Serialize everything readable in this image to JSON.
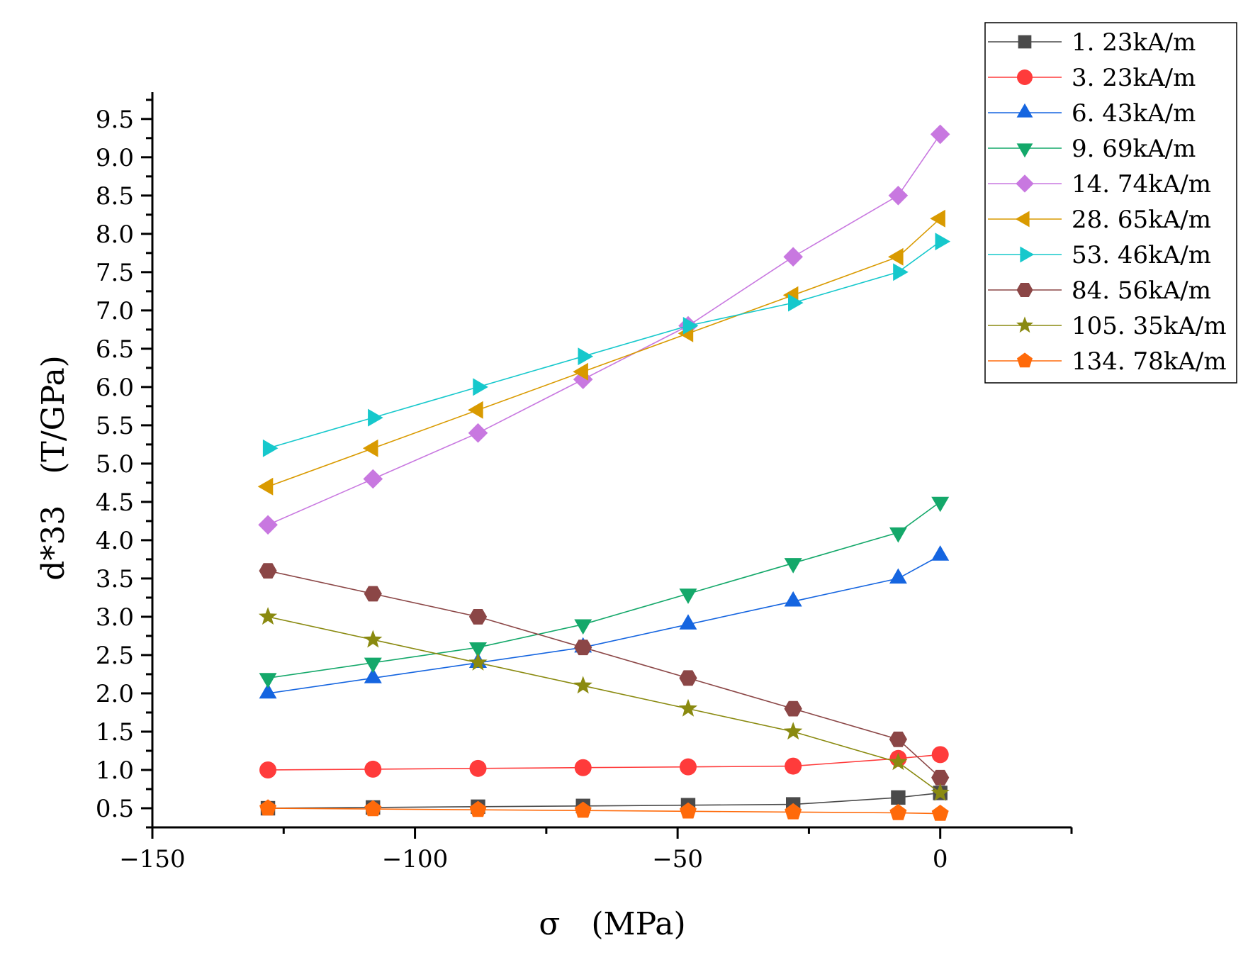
{
  "chart_data": {
    "type": "line",
    "title": "",
    "xlabel": "σ　(MPa)",
    "ylabel": "d*33　(T/GPa)",
    "xlim": [
      -150,
      25
    ],
    "ylim": [
      0.25,
      9.85
    ],
    "xticks": [
      -150,
      -100,
      -50,
      0
    ],
    "xtick_labels": [
      "−150",
      "−100",
      "−50",
      "0"
    ],
    "yticks": [
      0.5,
      1.0,
      1.5,
      2.0,
      2.5,
      3.0,
      3.5,
      4.0,
      4.5,
      5.0,
      5.5,
      6.0,
      6.5,
      7.0,
      7.5,
      8.0,
      8.5,
      9.0,
      9.5
    ],
    "ytick_labels": [
      "0.5",
      "1.0",
      "1.5",
      "2.0",
      "2.5",
      "3.0",
      "3.5",
      "4.0",
      "4.5",
      "5.0",
      "5.5",
      "6.0",
      "6.5",
      "7.0",
      "7.5",
      "8.0",
      "8.5",
      "9.0",
      "9.5"
    ],
    "grid": false,
    "legend_position": "top-right",
    "x": [
      -128,
      -108,
      -88,
      -68,
      -48,
      -28,
      -8,
      0
    ],
    "series": [
      {
        "name": "1. 23kA/m",
        "marker": "square",
        "color": "#4a4a4a",
        "values": [
          0.5,
          0.51,
          0.52,
          0.53,
          0.54,
          0.55,
          0.64,
          0.7
        ]
      },
      {
        "name": "3. 23kA/m",
        "marker": "circle",
        "color": "#ff3b3b",
        "values": [
          1.0,
          1.01,
          1.02,
          1.03,
          1.04,
          1.05,
          1.15,
          1.2
        ]
      },
      {
        "name": "6. 43kA/m",
        "marker": "triangle-up",
        "color": "#1565e0",
        "values": [
          2.0,
          2.2,
          2.4,
          2.6,
          2.9,
          3.2,
          3.5,
          3.8
        ]
      },
      {
        "name": "9. 69kA/m",
        "marker": "triangle-down",
        "color": "#14a86a",
        "values": [
          2.2,
          2.4,
          2.6,
          2.9,
          3.3,
          3.7,
          4.1,
          4.5
        ]
      },
      {
        "name": "14. 74kA/m",
        "marker": "diamond",
        "color": "#c878e0",
        "values": [
          4.2,
          4.8,
          5.4,
          6.1,
          6.8,
          7.7,
          8.5,
          9.3
        ]
      },
      {
        "name": "28. 65kA/m",
        "marker": "triangle-left",
        "color": "#d99a00",
        "values": [
          4.7,
          5.2,
          5.7,
          6.2,
          6.7,
          7.2,
          7.7,
          8.2
        ]
      },
      {
        "name": "53. 46kA/m",
        "marker": "triangle-right",
        "color": "#16c8cc",
        "values": [
          5.2,
          5.6,
          6.0,
          6.4,
          6.8,
          7.1,
          7.5,
          7.9
        ]
      },
      {
        "name": "84. 56kA/m",
        "marker": "hexagon",
        "color": "#8b4646",
        "values": [
          3.6,
          3.3,
          3.0,
          2.6,
          2.2,
          1.8,
          1.4,
          0.9
        ]
      },
      {
        "name": "105. 35kA/m",
        "marker": "star",
        "color": "#8a8a10",
        "values": [
          3.0,
          2.7,
          2.4,
          2.1,
          1.8,
          1.5,
          1.1,
          0.7
        ]
      },
      {
        "name": "134. 78kA/m",
        "marker": "pentagon",
        "color": "#ff6a0a",
        "values": [
          0.5,
          0.49,
          0.48,
          0.47,
          0.46,
          0.45,
          0.44,
          0.43
        ]
      }
    ]
  }
}
